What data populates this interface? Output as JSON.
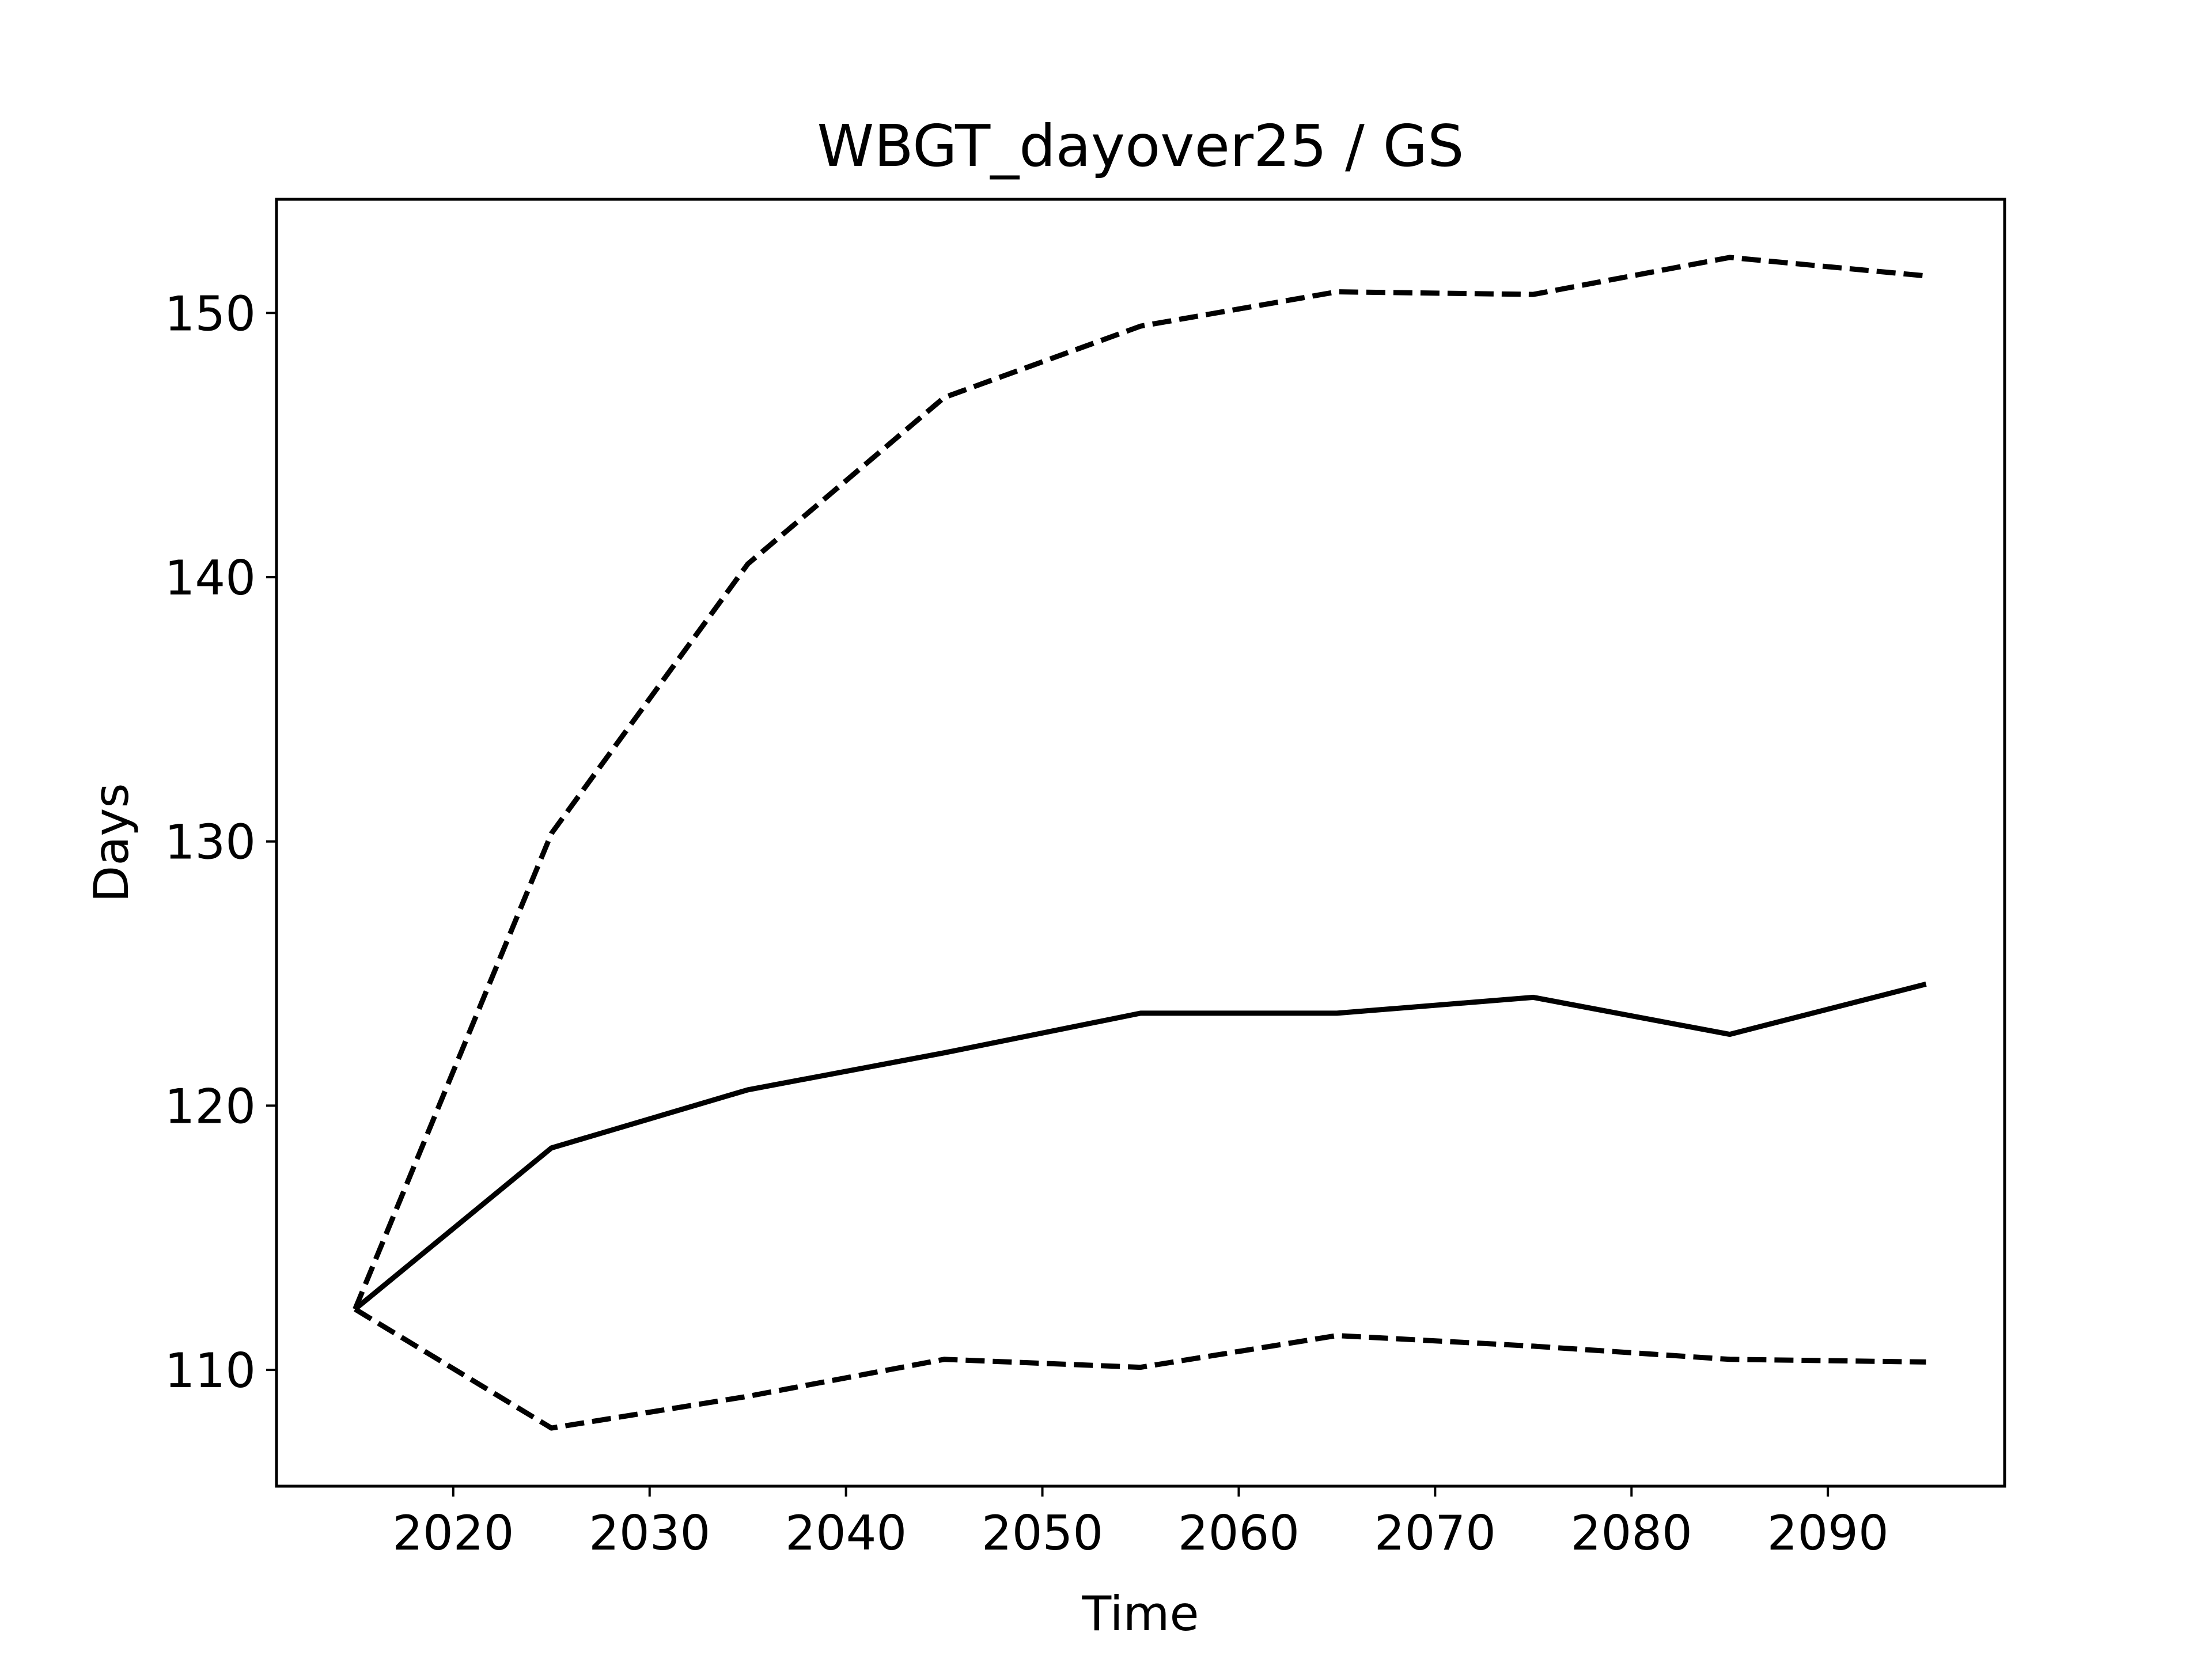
{
  "chart_data": {
    "type": "line",
    "title": "WBGT_dayover25 / GS",
    "xlabel": "Time",
    "ylabel": "Days",
    "xlim": [
      2011,
      2099
    ],
    "ylim": [
      105.6,
      154.3
    ],
    "xticks": [
      2020,
      2030,
      2040,
      2050,
      2060,
      2070,
      2080,
      2090
    ],
    "yticks": [
      110,
      120,
      130,
      140,
      150
    ],
    "grid": false,
    "legend": "none",
    "x": [
      2015,
      2025,
      2035,
      2045,
      2055,
      2065,
      2075,
      2085,
      2095
    ],
    "series": [
      {
        "style": "solid",
        "color": "#000000",
        "values": [
          112.3,
          118.4,
          120.6,
          122.0,
          123.5,
          123.5,
          124.1,
          122.7,
          124.6
        ]
      },
      {
        "style": "dashed",
        "color": "#000000",
        "values": [
          112.3,
          130.3,
          140.5,
          146.8,
          149.5,
          150.8,
          150.7,
          152.1,
          151.4
        ]
      },
      {
        "style": "dashed",
        "color": "#000000",
        "values": [
          112.3,
          107.8,
          109.0,
          110.4,
          110.1,
          111.3,
          110.9,
          110.4,
          110.3
        ]
      }
    ]
  }
}
